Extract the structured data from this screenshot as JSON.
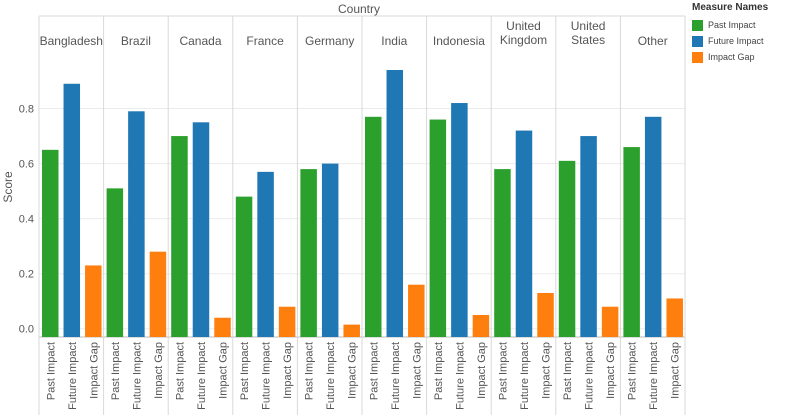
{
  "chart_data": {
    "type": "bar",
    "title": "Country",
    "ylabel": "Score",
    "ylim": [
      -0.03,
      0.98
    ],
    "yticks": [
      "0.0",
      "0.2",
      "0.4",
      "0.6",
      "0.8"
    ],
    "ytick_values": [
      0.0,
      0.2,
      0.4,
      0.6,
      0.8
    ],
    "grid": true,
    "legend_position": "top-right",
    "categories": [
      [
        "Bangladesh"
      ],
      [
        "Brazil"
      ],
      [
        "Canada"
      ],
      [
        "France"
      ],
      [
        "Germany"
      ],
      [
        "India"
      ],
      [
        "Indonesia"
      ],
      [
        "United",
        "Kingdom"
      ],
      [
        "United",
        "States"
      ],
      [
        "Other"
      ]
    ],
    "series": [
      {
        "name": "Past Impact",
        "color": "#2ca02c",
        "values": [
          0.65,
          0.51,
          0.7,
          0.48,
          0.58,
          0.77,
          0.76,
          0.58,
          0.61,
          0.66
        ]
      },
      {
        "name": "Future Impact",
        "color": "#1f77b4",
        "values": [
          0.89,
          0.79,
          0.75,
          0.57,
          0.6,
          0.94,
          0.82,
          0.72,
          0.7,
          0.77
        ]
      },
      {
        "name": "Impact Gap",
        "color": "#ff7f0e",
        "values": [
          0.23,
          0.28,
          0.04,
          0.08,
          0.015,
          0.16,
          0.05,
          0.13,
          0.08,
          0.11
        ]
      }
    ]
  },
  "legend": {
    "title": "Measure Names",
    "items": [
      {
        "label": "Past Impact",
        "color": "#2ca02c"
      },
      {
        "label": "Future Impact",
        "color": "#1f77b4"
      },
      {
        "label": "Impact Gap",
        "color": "#ff7f0e"
      }
    ]
  }
}
